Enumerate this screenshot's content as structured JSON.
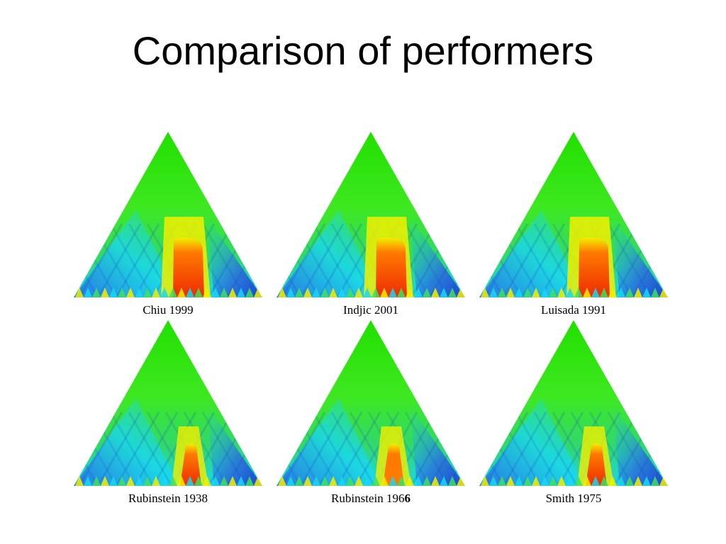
{
  "slide": {
    "title": "Comparison of performers"
  },
  "panels": [
    {
      "caption": "Chiu 1999",
      "caption_bold_suffix": "",
      "profile": "wide-red"
    },
    {
      "caption": "Indjic 2001",
      "caption_bold_suffix": "",
      "profile": "wide-red"
    },
    {
      "caption": "Luisada 1991",
      "caption_bold_suffix": "",
      "profile": "wide-red"
    },
    {
      "caption": "Rubinstein 1938",
      "caption_bold_suffix": "",
      "profile": "narrow-red"
    },
    {
      "caption": "Rubinstein 196",
      "caption_bold_suffix": "6",
      "profile": "narrow-yellow"
    },
    {
      "caption": "Smith 1975",
      "caption_bold_suffix": "",
      "profile": "narrow-red"
    }
  ],
  "colors": {
    "apex": "#22e000",
    "mid_green": "#3ee820",
    "cyan": "#19d8f0",
    "blue": "#2a6be0",
    "deep_blue": "#1a3fd0",
    "yellow": "#f2f000",
    "orange": "#ff7a00",
    "red": "#ee2a00"
  }
}
